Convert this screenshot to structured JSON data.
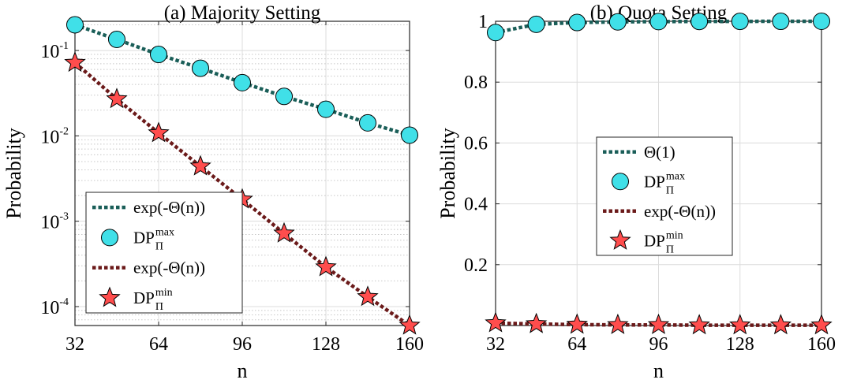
{
  "chart_data": [
    {
      "type": "line",
      "title": "(a) Majority Setting",
      "xlabel": "n",
      "ylabel": "Probability",
      "xscale": "linear",
      "yscale": "log",
      "xlim": [
        32,
        160
      ],
      "ylim": [
        6e-05,
        0.22
      ],
      "xticks": [
        32,
        64,
        96,
        128,
        160
      ],
      "xtick_labels": [
        "32",
        "64",
        "96",
        "128",
        "160"
      ],
      "yticks": [
        0.0001,
        0.001,
        0.01,
        0.1
      ],
      "ytick_labels": [
        {
          "base": "10",
          "exp": "-4"
        },
        {
          "base": "10",
          "exp": "-3"
        },
        {
          "base": "10",
          "exp": "-2"
        },
        {
          "base": "10",
          "exp": "-1"
        }
      ],
      "grid": true,
      "minor_grid": true,
      "legend_position": "bottom-left",
      "x": [
        32,
        48,
        64,
        80,
        96,
        112,
        128,
        144,
        160
      ],
      "series": [
        {
          "kind": "line",
          "name": "exp(-Θ(n))",
          "color": "#1a5e58",
          "style": "dotted",
          "values": [
            0.2,
            0.135,
            0.09,
            0.062,
            0.042,
            0.029,
            0.0205,
            0.0142,
            0.0102
          ]
        },
        {
          "kind": "marker",
          "marker": "circle",
          "name": "DP",
          "name_sup": "max",
          "name_sub": "Π",
          "color": "#40e0e8",
          "values": [
            0.2,
            0.135,
            0.09,
            0.062,
            0.042,
            0.029,
            0.0205,
            0.0142,
            0.0102
          ]
        },
        {
          "kind": "line",
          "name": "exp(-Θ(n))",
          "color": "#6b1a1a",
          "style": "dotted",
          "values": [
            0.072,
            0.027,
            0.0108,
            0.0044,
            0.0018,
            0.00072,
            0.00029,
            0.00013,
            6e-05
          ]
        },
        {
          "kind": "marker",
          "marker": "star",
          "name": "DP",
          "name_sup": "min",
          "name_sub": "Π",
          "color": "#ff4d4d",
          "values": [
            0.072,
            0.027,
            0.0108,
            0.0044,
            0.0018,
            0.00072,
            0.00029,
            0.00013,
            6e-05
          ]
        }
      ]
    },
    {
      "type": "line",
      "title": "(b) Quota Setting",
      "xlabel": "n",
      "ylabel": "Probability",
      "xscale": "linear",
      "yscale": "linear",
      "xlim": [
        32,
        160
      ],
      "ylim": [
        0,
        1
      ],
      "xticks": [
        32,
        64,
        96,
        128,
        160
      ],
      "xtick_labels": [
        "32",
        "64",
        "96",
        "128",
        "160"
      ],
      "yticks": [
        0.2,
        0.4,
        0.6,
        0.8,
        1
      ],
      "ytick_labels": [
        "0.2",
        "0.4",
        "0.6",
        "0.8",
        "1"
      ],
      "grid": true,
      "minor_grid": false,
      "legend_position": "center",
      "x": [
        32,
        48,
        64,
        80,
        96,
        112,
        128,
        144,
        160
      ],
      "series": [
        {
          "kind": "line",
          "name": "Θ(1)",
          "color": "#1a5e58",
          "style": "dotted",
          "values": [
            0.963,
            0.99,
            0.996,
            0.998,
            0.999,
            0.9995,
            0.9998,
            0.9999,
            1.0
          ]
        },
        {
          "kind": "marker",
          "marker": "circle",
          "name": "DP",
          "name_sup": "max",
          "name_sub": "Π",
          "color": "#40e0e8",
          "values": [
            0.963,
            0.99,
            0.996,
            0.998,
            0.999,
            0.9995,
            0.9998,
            0.9999,
            1.0
          ]
        },
        {
          "kind": "line",
          "name": "exp(-Θ(n))",
          "color": "#6b1a1a",
          "style": "dotted",
          "values": [
            0.008,
            0.005,
            0.003,
            0.002,
            0.002,
            0.001,
            0.001,
            0.001,
            0.001
          ]
        },
        {
          "kind": "marker",
          "marker": "star",
          "name": "DP",
          "name_sup": "min",
          "name_sub": "Π",
          "color": "#ff4d4d",
          "values": [
            0.008,
            0.005,
            0.003,
            0.002,
            0.002,
            0.001,
            0.001,
            0.001,
            0.001
          ]
        }
      ]
    }
  ]
}
